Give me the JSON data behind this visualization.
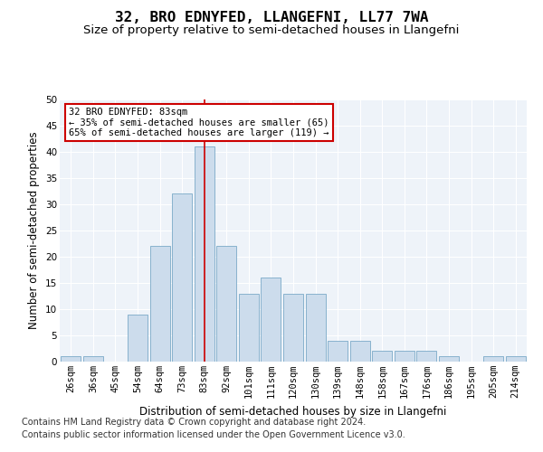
{
  "title": "32, BRO EDNYFED, LLANGEFNI, LL77 7WA",
  "subtitle": "Size of property relative to semi-detached houses in Llangefni",
  "xlabel": "Distribution of semi-detached houses by size in Llangefni",
  "ylabel": "Number of semi-detached properties",
  "categories": [
    "26sqm",
    "36sqm",
    "45sqm",
    "54sqm",
    "64sqm",
    "73sqm",
    "83sqm",
    "92sqm",
    "101sqm",
    "111sqm",
    "120sqm",
    "130sqm",
    "139sqm",
    "148sqm",
    "158sqm",
    "167sqm",
    "176sqm",
    "186sqm",
    "195sqm",
    "205sqm",
    "214sqm"
  ],
  "values": [
    1,
    1,
    0,
    9,
    22,
    32,
    41,
    22,
    13,
    16,
    13,
    13,
    4,
    4,
    2,
    2,
    2,
    1,
    0,
    1,
    1
  ],
  "bar_color": "#ccdcec",
  "bar_edge_color": "#7aaac8",
  "highlight_index": 6,
  "highlight_line_color": "#cc0000",
  "annotation_text": "32 BRO EDNYFED: 83sqm\n← 35% of semi-detached houses are smaller (65)\n65% of semi-detached houses are larger (119) →",
  "annotation_box_color": "#ffffff",
  "annotation_box_edge": "#cc0000",
  "ylim": [
    0,
    50
  ],
  "yticks": [
    0,
    5,
    10,
    15,
    20,
    25,
    30,
    35,
    40,
    45,
    50
  ],
  "footer1": "Contains HM Land Registry data © Crown copyright and database right 2024.",
  "footer2": "Contains public sector information licensed under the Open Government Licence v3.0.",
  "bg_color": "#eef3f9",
  "grid_color": "#ffffff",
  "title_fontsize": 11.5,
  "subtitle_fontsize": 9.5,
  "axis_label_fontsize": 8.5,
  "tick_fontsize": 7.5,
  "footer_fontsize": 7
}
